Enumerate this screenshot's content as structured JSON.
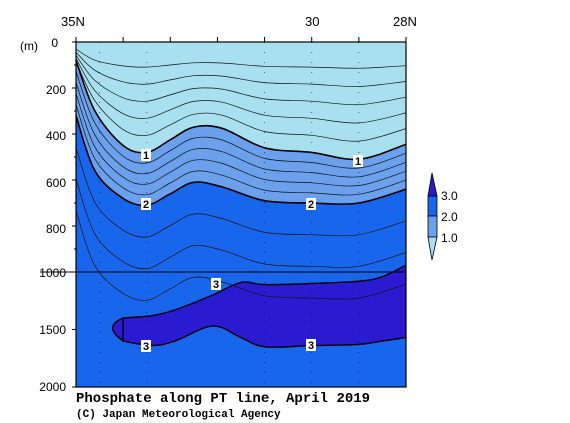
{
  "chart_data": {
    "type": "heatmap",
    "title": "Phosphate along PT line, April 2019",
    "credit": "(C) Japan Meteorological Agency",
    "ylabel": "(m)",
    "x_ticks": [
      "35N",
      "30",
      "28N"
    ],
    "x_range_latitude": [
      35,
      28
    ],
    "y_ticks_upper": [
      "0",
      "200",
      "400",
      "600",
      "800",
      "1000"
    ],
    "y_ticks_lower": [
      "1500",
      "2000"
    ],
    "y_range_depth_m": [
      0,
      2000
    ],
    "axis_break_depth_m": 1000,
    "legend": {
      "labels": [
        "3.0",
        "2.0",
        "1.0"
      ],
      "colors": [
        "#2a1ad0",
        "#1866ec",
        "#6aa0ec",
        "#a8e0f0"
      ]
    },
    "contours": [
      {
        "value": 1,
        "label": "1",
        "lat": [
          35,
          34.6,
          34.0,
          33.5,
          33.0,
          32.5,
          31.9,
          31.0,
          30.0,
          29.0,
          28.0
        ],
        "depth": [
          80,
          300,
          450,
          480,
          425,
          370,
          375,
          460,
          480,
          510,
          445
        ]
      },
      {
        "value": 2,
        "label": "2",
        "lat": [
          35,
          34.6,
          34.0,
          33.5,
          33.0,
          32.5,
          31.9,
          31.0,
          30.0,
          29.0,
          28.0
        ],
        "depth": [
          320,
          560,
          680,
          710,
          660,
          610,
          630,
          690,
          700,
          700,
          640
        ]
      },
      {
        "value": 3,
        "label": "3",
        "lat": [
          34.0,
          33.4,
          32.9,
          32.1,
          31.5,
          31.0,
          30.0,
          29.0,
          28.5,
          28.0
        ],
        "depth": [
          1600,
          1640,
          1600,
          1470,
          1570,
          1650,
          1640,
          1630,
          1600,
          1570
        ]
      },
      {
        "value": 3,
        "label": "3",
        "lat": [
          34.0,
          33.4,
          32.9,
          32.1,
          31.5,
          31.0,
          30.0,
          29.0,
          28.5,
          28.0
        ],
        "depth": [
          1400,
          1380,
          1330,
          1200,
          1090,
          1110,
          1100,
          1080,
          1040,
          970
        ]
      }
    ],
    "zones": [
      {
        "name": "phosphate > 3.0",
        "color": "#2a1ad0"
      },
      {
        "name": "phosphate 2.0-3.0",
        "color": "#1866ec"
      },
      {
        "name": "phosphate 1.0-2.0",
        "color": "#6aa0ec"
      },
      {
        "name": "phosphate < 1.0",
        "color": "#a8e0f0"
      }
    ],
    "grid": false
  }
}
